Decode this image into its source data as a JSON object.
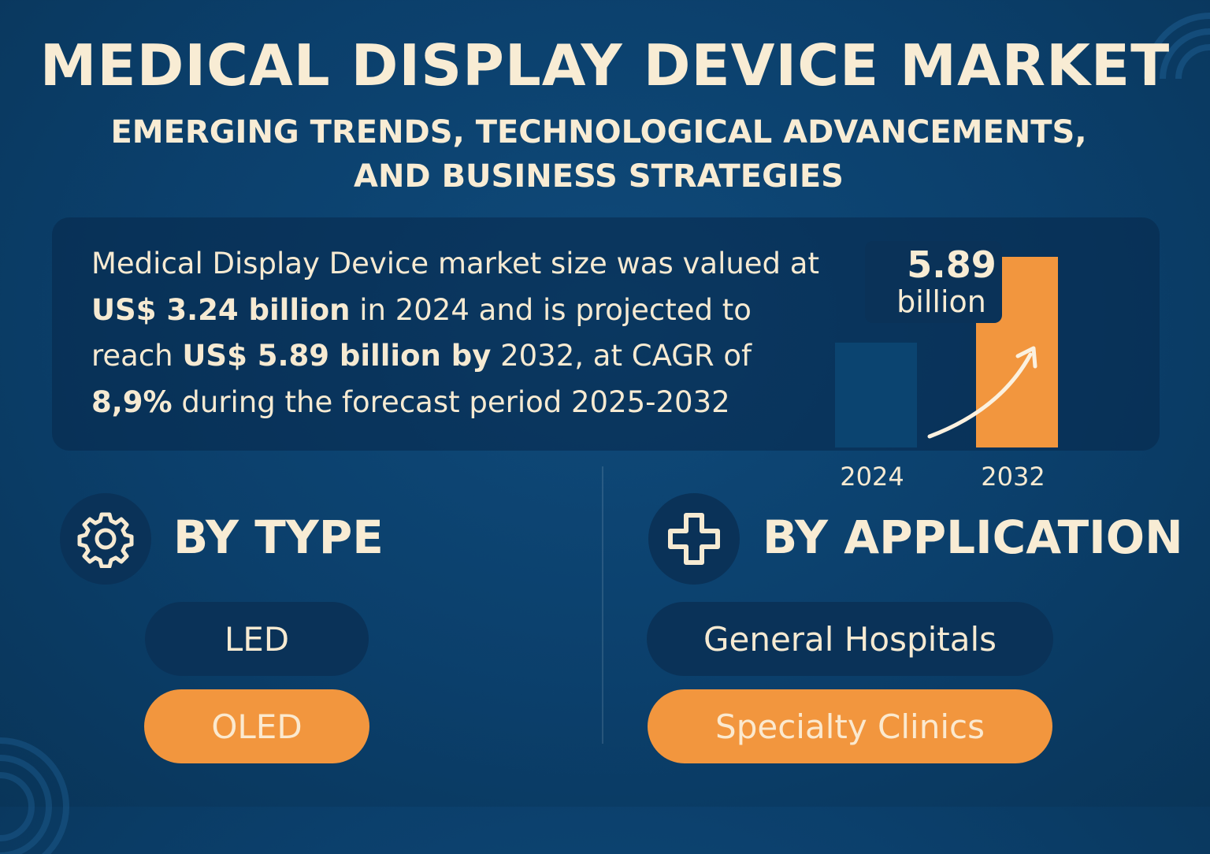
{
  "header": {
    "title": "MEDICAL DISPLAY DEVICE MARKET",
    "subtitle": "EMERGING TRENDS, TECHNOLOGICAL ADVANCEMENTS, AND BUSINESS STRATEGIES"
  },
  "summary": {
    "part1": "Medical Display Device market size was valued at ",
    "value_2024": "US$ 3.24 billion",
    "part2": " in 2024 and is projected to reach ",
    "value_2032": "US$ 5.89 billion by",
    "part3": " 2032, at CAGR of ",
    "cagr": "8,9%",
    "part4": " during the forecast period 2025-2032"
  },
  "chart_data": {
    "type": "bar",
    "categories": [
      "2024",
      "2032"
    ],
    "values": [
      3.24,
      5.89
    ],
    "callout_value": "5.89",
    "callout_unit": "billion",
    "colors": [
      "#0b4470",
      "#f2963e"
    ],
    "trend_arrow": true
  },
  "by_type": {
    "heading": "BY TYPE",
    "icon": "gear-icon",
    "items": [
      {
        "label": "LED",
        "highlight": false
      },
      {
        "label": "OLED",
        "highlight": true
      }
    ]
  },
  "by_application": {
    "heading": "BY APPLICATION",
    "icon": "medical-cross-icon",
    "items": [
      {
        "label": "General Hospitals",
        "highlight": false
      },
      {
        "label": "Specialty Clinics",
        "highlight": true
      }
    ]
  },
  "colors": {
    "background": "#0b3f6b",
    "accent": "#f2963e",
    "text": "#f6ead2",
    "panel": "#0a3258"
  }
}
